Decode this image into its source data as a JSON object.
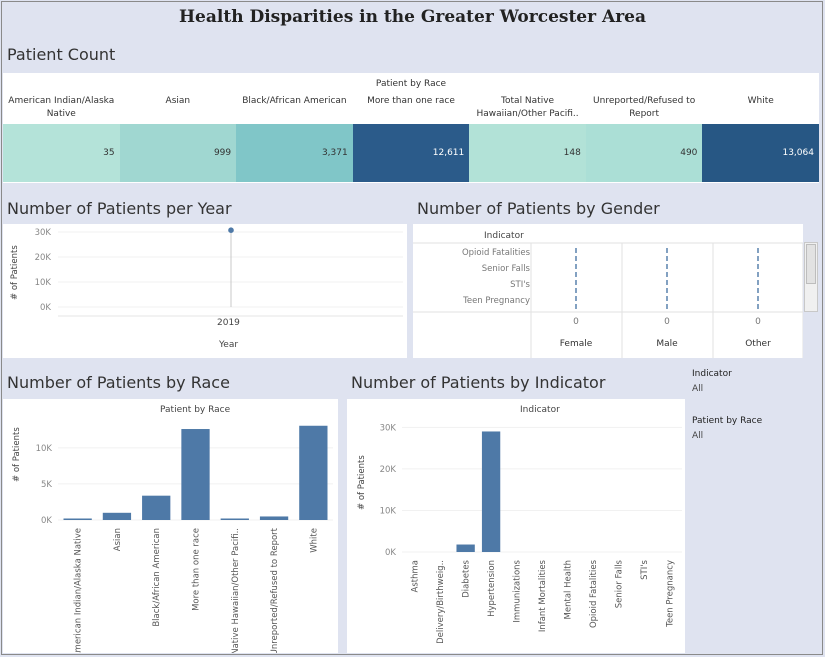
{
  "title": "Health Disparities in the Greater Worcester Area",
  "patient_count": {
    "section_title": "Patient Count",
    "header": "Patient by Race",
    "columns": [
      {
        "label": "American Indian/Alaska Native",
        "value": "35",
        "color": "#b4e3d9",
        "text_color": "#333333"
      },
      {
        "label": "Asian",
        "value": "999",
        "color": "#a0d7d1",
        "text_color": "#333333"
      },
      {
        "label": "Black/African American",
        "value": "3,371",
        "color": "#80c6c8",
        "text_color": "#333333"
      },
      {
        "label": "More than one race",
        "value": "12,611",
        "color": "#2b5b8a",
        "text_color": "#ffffff"
      },
      {
        "label": "Total Native Hawaiian/Other Pacifi..",
        "value": "148",
        "color": "#b2e2d7",
        "text_color": "#333333"
      },
      {
        "label": "Unreported/Refused to Report",
        "value": "490",
        "color": "#abdfd6",
        "text_color": "#333333"
      },
      {
        "label": "White",
        "value": "13,064",
        "color": "#275784",
        "text_color": "#ffffff"
      }
    ]
  },
  "per_year": {
    "section_title": "Number of Patients per Year",
    "ylabel": "# of Patients",
    "xlabel": "Year",
    "yticks": [
      "30K",
      "20K",
      "10K",
      "0K"
    ]
  },
  "by_gender": {
    "section_title": "Number of Patients by Gender",
    "indicator_header": "Indicator",
    "indicators": [
      "Opioid Fatalities",
      "Senior Falls",
      "STI's",
      "Teen Pregnancy"
    ],
    "genders": [
      {
        "label": "Female",
        "value": "0"
      },
      {
        "label": "Male",
        "value": "0"
      },
      {
        "label": "Other",
        "value": "0"
      }
    ]
  },
  "by_race": {
    "section_title": "Number of Patients by Race",
    "header": "Patient by Race",
    "ylabel": "# of Patients",
    "yticks": [
      "10K",
      "5K",
      "0K"
    ]
  },
  "by_indicator": {
    "section_title": "Number of Patients by Indicator",
    "header": "Indicator",
    "ylabel": "# of Patients",
    "yticks": [
      "30K",
      "20K",
      "10K",
      "0K"
    ]
  },
  "filters": [
    {
      "title": "Indicator",
      "value": "All"
    },
    {
      "title": "Patient by Race",
      "value": "All"
    }
  ],
  "colors": {
    "bar": "#4e79a7",
    "background": "#dfe3f0"
  },
  "chart_data": [
    {
      "type": "table",
      "title": "Patient Count",
      "categories": [
        "American Indian/Alaska Native",
        "Asian",
        "Black/African American",
        "More than one race",
        "Total Native Hawaiian/Other Pacifi..",
        "Unreported/Refused to Report",
        "White"
      ],
      "values": [
        35,
        999,
        3371,
        12611,
        148,
        490,
        13064
      ]
    },
    {
      "type": "scatter",
      "title": "Number of Patients per Year",
      "xlabel": "Year",
      "ylabel": "# of Patients",
      "x": [
        "2019"
      ],
      "values": [
        30718
      ],
      "ylim": [
        0,
        30000
      ]
    },
    {
      "type": "bar",
      "title": "Number of Patients by Gender",
      "categories": [
        "Female",
        "Male",
        "Other"
      ],
      "values": [
        0,
        0,
        0
      ]
    },
    {
      "type": "bar",
      "title": "Number of Patients by Race",
      "xlabel": "Patient by Race",
      "ylabel": "# of Patients",
      "categories": [
        "American Indian/Alaska Native",
        "Asian",
        "Black/African American",
        "More than one race",
        "Total Native Hawaiian/Other Pacifi..",
        "Unreported/Refused to Report",
        "White"
      ],
      "values": [
        35,
        999,
        3371,
        12611,
        148,
        490,
        13064
      ],
      "ylim": [
        0,
        14000
      ]
    },
    {
      "type": "bar",
      "title": "Number of Patients by Indicator",
      "xlabel": "Indicator",
      "ylabel": "# of Patients",
      "categories": [
        "Asthma",
        "Delivery/Birthweig..",
        "Diabetes",
        "Hypertension",
        "Immunizations",
        "Infant Mortalities",
        "Mental Health",
        "Opioid Fatalities",
        "Senior Falls",
        "STI's",
        "Teen Pregnancy"
      ],
      "values": [
        0,
        0,
        1800,
        29000,
        0,
        0,
        0,
        0,
        0,
        0,
        0
      ],
      "ylim": [
        0,
        32000
      ]
    }
  ]
}
